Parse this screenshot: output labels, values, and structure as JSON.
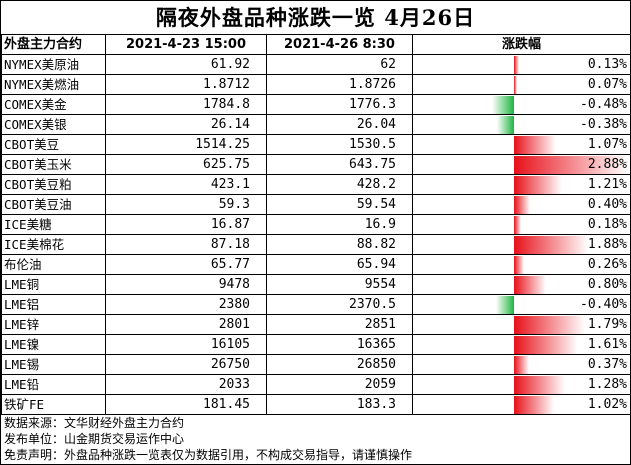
{
  "title": "隔夜外盘品种涨跌一览  4月26日",
  "header": {
    "col_name": "外盘主力合约",
    "col_prev": "2021-4-23 15:00",
    "col_curr": "2021-4-26  8:30",
    "col_change": "涨跌幅"
  },
  "colors": {
    "up": "#e8101a",
    "down": "#1fb540"
  },
  "rows": [
    {
      "name": "NYMEX美原油",
      "prev": "61.92",
      "curr": "62",
      "change": "0.13%",
      "value": 0.13
    },
    {
      "name": "NYMEX美燃油",
      "prev": "1.8712",
      "curr": "1.8726",
      "change": "0.07%",
      "value": 0.07
    },
    {
      "name": "COMEX美金",
      "prev": "1784.8",
      "curr": "1776.3",
      "change": "-0.48%",
      "value": -0.48
    },
    {
      "name": "COMEX美银",
      "prev": "26.14",
      "curr": "26.04",
      "change": "-0.38%",
      "value": -0.38
    },
    {
      "name": "CBOT美豆",
      "prev": "1514.25",
      "curr": "1530.5",
      "change": "1.07%",
      "value": 1.07
    },
    {
      "name": "CBOT美玉米",
      "prev": "625.75",
      "curr": "643.75",
      "change": "2.88%",
      "value": 2.88
    },
    {
      "name": "CBOT美豆粕",
      "prev": "423.1",
      "curr": "428.2",
      "change": "1.21%",
      "value": 1.21
    },
    {
      "name": "CBOT美豆油",
      "prev": "59.3",
      "curr": "59.54",
      "change": "0.40%",
      "value": 0.4
    },
    {
      "name": "ICE美糖",
      "prev": "16.87",
      "curr": "16.9",
      "change": "0.18%",
      "value": 0.18
    },
    {
      "name": "ICE美棉花",
      "prev": "87.18",
      "curr": "88.82",
      "change": "1.88%",
      "value": 1.88
    },
    {
      "name": "布伦油",
      "prev": "65.77",
      "curr": "65.94",
      "change": "0.26%",
      "value": 0.26
    },
    {
      "name": "LME铜",
      "prev": "9478",
      "curr": "9554",
      "change": "0.80%",
      "value": 0.8
    },
    {
      "name": "LME铝",
      "prev": "2380",
      "curr": "2370.5",
      "change": "-0.40%",
      "value": -0.4
    },
    {
      "name": "LME锌",
      "prev": "2801",
      "curr": "2851",
      "change": "1.79%",
      "value": 1.79
    },
    {
      "name": "LME镍",
      "prev": "16105",
      "curr": "16365",
      "change": "1.61%",
      "value": 1.61
    },
    {
      "name": "LME锡",
      "prev": "26750",
      "curr": "26850",
      "change": "0.37%",
      "value": 0.37
    },
    {
      "name": "LME铅",
      "prev": "2033",
      "curr": "2059",
      "change": "1.28%",
      "value": 1.28
    },
    {
      "name": "铁矿FE",
      "prev": "181.45",
      "curr": "183.3",
      "change": "1.02%",
      "value": 1.02
    }
  ],
  "footer": {
    "source": "数据来源：文华财经外盘主力合约",
    "publisher": "发布单位：山金期货交易运作中心",
    "disclaimer": "免责声明：外盘品种涨跌一览表仅为数据引用，不构成交易指导，请谨慎操作"
  }
}
